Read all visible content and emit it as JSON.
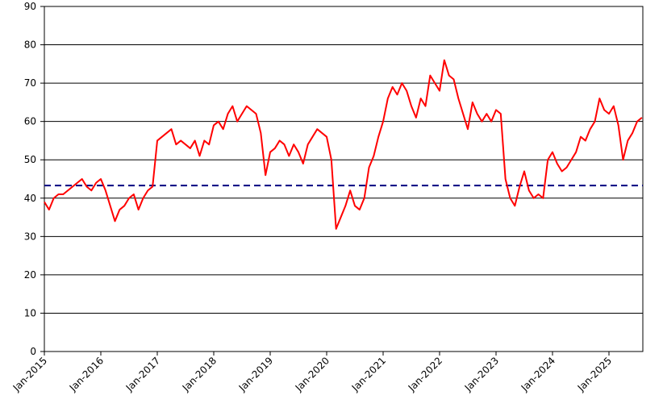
{
  "chart_data": {
    "type": "line",
    "x": [
      "Jan-2015",
      "Feb-2015",
      "Mar-2015",
      "Apr-2015",
      "May-2015",
      "Jun-2015",
      "Jul-2015",
      "Aug-2015",
      "Sep-2015",
      "Oct-2015",
      "Nov-2015",
      "Dec-2015",
      "Jan-2016",
      "Feb-2016",
      "Mar-2016",
      "Apr-2016",
      "May-2016",
      "Jun-2016",
      "Jul-2016",
      "Aug-2016",
      "Sep-2016",
      "Oct-2016",
      "Nov-2016",
      "Dec-2016",
      "Jan-2017",
      "Feb-2017",
      "Mar-2017",
      "Apr-2017",
      "May-2017",
      "Jun-2017",
      "Jul-2017",
      "Aug-2017",
      "Sep-2017",
      "Oct-2017",
      "Nov-2017",
      "Dec-2017",
      "Jan-2018",
      "Feb-2018",
      "Mar-2018",
      "Apr-2018",
      "May-2018",
      "Jun-2018",
      "Jul-2018",
      "Aug-2018",
      "Sep-2018",
      "Oct-2018",
      "Nov-2018",
      "Dec-2018",
      "Jan-2019",
      "Feb-2019",
      "Mar-2019",
      "Apr-2019",
      "May-2019",
      "Jun-2019",
      "Jul-2019",
      "Aug-2019",
      "Sep-2019",
      "Oct-2019",
      "Nov-2019",
      "Dec-2019",
      "Jan-2020",
      "Feb-2020",
      "Mar-2020",
      "Apr-2020",
      "May-2020",
      "Jun-2020",
      "Jul-2020",
      "Aug-2020",
      "Sep-2020",
      "Oct-2020",
      "Nov-2020",
      "Dec-2020",
      "Jan-2021",
      "Feb-2021",
      "Mar-2021",
      "Apr-2021",
      "May-2021",
      "Jun-2021",
      "Jul-2021",
      "Aug-2021",
      "Sep-2021",
      "Oct-2021",
      "Nov-2021",
      "Dec-2021",
      "Jan-2022",
      "Feb-2022",
      "Mar-2022",
      "Apr-2022",
      "May-2022",
      "Jun-2022",
      "Jul-2022",
      "Aug-2022",
      "Sep-2022",
      "Oct-2022",
      "Nov-2022",
      "Dec-2022",
      "Jan-2023",
      "Feb-2023",
      "Mar-2023",
      "Apr-2023",
      "May-2023",
      "Jun-2023",
      "Jul-2023",
      "Aug-2023",
      "Sep-2023",
      "Oct-2023",
      "Nov-2023",
      "Dec-2023",
      "Jan-2024",
      "Feb-2024",
      "Mar-2024",
      "Apr-2024",
      "May-2024",
      "Jun-2024",
      "Jul-2024",
      "Aug-2024",
      "Sep-2024",
      "Oct-2024",
      "Nov-2024",
      "Dec-2024",
      "Jan-2025",
      "Feb-2025",
      "Mar-2025",
      "Apr-2025",
      "May-2025",
      "Jun-2025",
      "Jul-2025",
      "Aug-2025"
    ],
    "series": [
      {
        "color": "#ff0000",
        "values": [
          39,
          37,
          40,
          41,
          41,
          42,
          43,
          44,
          45,
          43,
          42,
          44,
          45,
          42,
          38,
          34,
          37,
          38,
          40,
          41,
          37,
          40,
          42,
          43,
          55,
          56,
          57,
          58,
          54,
          55,
          54,
          53,
          55,
          51,
          55,
          54,
          59,
          60,
          58,
          62,
          64,
          60,
          62,
          64,
          63,
          62,
          57,
          46,
          52,
          53,
          55,
          54,
          51,
          54,
          52,
          49,
          54,
          56,
          58,
          57,
          56,
          50,
          32,
          35,
          38,
          42,
          38,
          37,
          40,
          48,
          51,
          56,
          60,
          66,
          69,
          67,
          70,
          68,
          64,
          61,
          66,
          64,
          72,
          70,
          68,
          76,
          72,
          71,
          66,
          62,
          58,
          65,
          62,
          60,
          62,
          60,
          63,
          62,
          45,
          40,
          38,
          43,
          47,
          42,
          40,
          41,
          40,
          50,
          52,
          49,
          47,
          48,
          50,
          52,
          56,
          55,
          58,
          60,
          66,
          63,
          62,
          64,
          59,
          50,
          55,
          57,
          60,
          61
        ]
      }
    ],
    "reference_line": {
      "value": 43.3,
      "color": "#000080",
      "dashed": true
    },
    "xticks": [
      "Jan-2015",
      "Jan-2016",
      "Jan-2017",
      "Jan-2018",
      "Jan-2019",
      "Jan-2020",
      "Jan-2021",
      "Jan-2022",
      "Jan-2023",
      "Jan-2024",
      "Jan-2025"
    ],
    "ylim": [
      0,
      90
    ],
    "yticks": [
      0,
      10,
      20,
      30,
      40,
      50,
      60,
      70,
      80,
      90
    ],
    "grid": true
  }
}
